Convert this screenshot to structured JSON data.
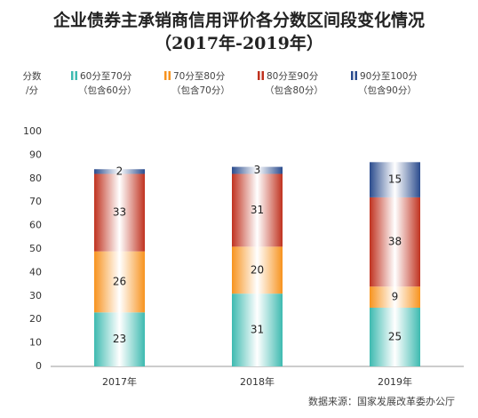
{
  "chart_data": {
    "type": "stacked_bar",
    "title": "企业债券主承销商信用评价各分数区间段变化情况",
    "subtitle": "（2017年-2019年）",
    "ylabel": [
      "分数",
      "/分"
    ],
    "categories": [
      "2017年",
      "2018年",
      "2019年"
    ],
    "series": [
      {
        "name": "60分至70分",
        "subname": "（包含60分）",
        "color": "#3dbab0",
        "values": [
          23,
          31,
          25
        ]
      },
      {
        "name": "70分至80分",
        "subname": "（包含70分）",
        "color": "#f7931e",
        "values": [
          26,
          20,
          9
        ]
      },
      {
        "name": "80分至90分",
        "subname": "（包含80分）",
        "color": "#c0321f",
        "values": [
          33,
          31,
          38
        ]
      },
      {
        "name": "90分至100分",
        "subname": "（包含90分）",
        "color": "#2a4b8d",
        "values": [
          2,
          3,
          15
        ]
      }
    ],
    "ylim": [
      0,
      100
    ],
    "yticks": [
      0,
      10,
      20,
      30,
      40,
      50,
      60,
      70,
      80,
      90,
      100
    ],
    "grid": false,
    "source": "数据来源：国家发展改革委办公厅"
  }
}
